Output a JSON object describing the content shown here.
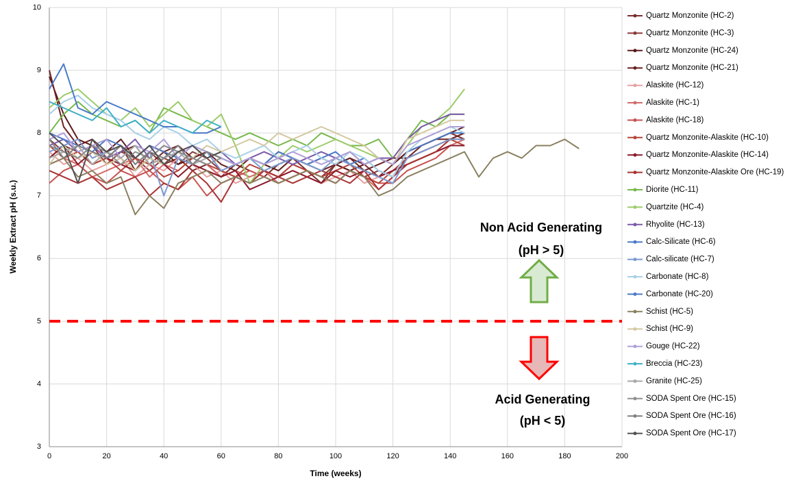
{
  "chart_data": {
    "type": "line",
    "xlabel": "Time (weeks)",
    "ylabel": "Weekly Extract pH (s.u.)",
    "xlim": [
      0,
      200
    ],
    "ylim": [
      3,
      10
    ],
    "xticks": [
      0,
      20,
      40,
      60,
      80,
      100,
      120,
      140,
      160,
      180,
      200
    ],
    "yticks": [
      3,
      4,
      5,
      6,
      7,
      8,
      9,
      10
    ],
    "grid": true,
    "legend": "right",
    "reference_line": {
      "value": 5,
      "color": "#ff0000"
    },
    "annotations": [
      {
        "text": "Non Acid Generating",
        "color": "#70ad47"
      },
      {
        "text": "(pH > 5)",
        "color": "#70ad47"
      },
      {
        "text": "Acid Generating",
        "color": "#ff0000"
      },
      {
        "text": "(pH < 5)",
        "color": "#ff0000"
      }
    ],
    "x": [
      0,
      5,
      10,
      15,
      20,
      25,
      30,
      35,
      40,
      45,
      50,
      55,
      60,
      65,
      70,
      75,
      80,
      85,
      90,
      95,
      100,
      105,
      110,
      115,
      120,
      125,
      130,
      135,
      140,
      145,
      150,
      155,
      160,
      165,
      170,
      175,
      180,
      185
    ],
    "series": [
      {
        "name": "Quartz Monzonite (HC-2)",
        "color": "#7b2c2c",
        "values": [
          7.6,
          7.8,
          7.7,
          7.5,
          7.6,
          7.8,
          7.4,
          7.7,
          7.5,
          7.6,
          7.4,
          7.5,
          7.3,
          7.5,
          7.4,
          7.3,
          7.5,
          7.6,
          7.4,
          7.2,
          7.5,
          7.6,
          7.5,
          7.3,
          7.5,
          7.7,
          7.8,
          7.9,
          8.0,
          7.9,
          null,
          null,
          null,
          null,
          null,
          null,
          null,
          null
        ]
      },
      {
        "name": "Quartz Monzonite (HC-3)",
        "color": "#8b3a3a",
        "values": [
          7.9,
          7.7,
          7.6,
          7.8,
          7.5,
          7.7,
          7.6,
          7.4,
          7.6,
          7.5,
          7.7,
          7.6,
          7.4,
          7.3,
          7.2,
          7.4,
          7.3,
          7.5,
          7.4,
          7.3,
          7.5,
          7.4,
          7.3,
          7.4,
          7.3,
          7.6,
          7.7,
          7.8,
          7.9,
          8.0,
          null,
          null,
          null,
          null,
          null,
          null,
          null,
          null
        ]
      },
      {
        "name": "Quartz Monzonite (HC-24)",
        "color": "#5c1a1a",
        "values": [
          8.9,
          8.3,
          7.9,
          7.8,
          7.7,
          7.9,
          7.6,
          7.8,
          7.7,
          7.5,
          7.6,
          7.7,
          7.6,
          7.5,
          7.6,
          7.5,
          7.4,
          7.6,
          7.5,
          7.6,
          7.5,
          7.4,
          7.5,
          7.6,
          7.5,
          7.7,
          7.8,
          7.9,
          8.0,
          8.1,
          null,
          null,
          null,
          null,
          null,
          null,
          null,
          null
        ]
      },
      {
        "name": "Quartz Monzonite (HC-21)",
        "color": "#6b2222",
        "values": [
          9.0,
          8.1,
          7.8,
          7.9,
          7.6,
          7.7,
          7.8,
          7.5,
          7.7,
          7.8,
          7.6,
          7.7,
          7.5,
          7.4,
          7.6,
          7.5,
          7.7,
          7.6,
          7.5,
          7.4,
          7.5,
          7.6,
          7.4,
          7.5,
          7.6,
          7.6,
          7.8,
          7.9,
          7.9,
          8.0,
          null,
          null,
          null,
          null,
          null,
          null,
          null,
          null
        ]
      },
      {
        "name": "Alaskite (HC-12)",
        "color": "#e8a0a0",
        "values": [
          7.7,
          7.5,
          7.6,
          7.4,
          7.5,
          7.6,
          7.3,
          7.5,
          7.4,
          7.6,
          7.5,
          7.3,
          7.4,
          7.2,
          7.3,
          7.4,
          7.3,
          7.4,
          7.3,
          7.2,
          7.3,
          7.4,
          7.2,
          7.3,
          7.4,
          7.5,
          7.6,
          7.7,
          7.8,
          7.8,
          null,
          null,
          null,
          null,
          null,
          null,
          null,
          null
        ]
      },
      {
        "name": "Alaskite (HC-1)",
        "color": "#d46a6a",
        "values": [
          7.5,
          7.6,
          7.5,
          7.3,
          7.4,
          7.5,
          7.6,
          7.3,
          7.5,
          7.4,
          7.6,
          7.5,
          7.3,
          7.4,
          7.3,
          7.4,
          7.2,
          7.3,
          7.4,
          7.3,
          7.2,
          7.4,
          7.3,
          7.1,
          7.3,
          7.5,
          7.6,
          7.7,
          7.8,
          7.9,
          null,
          null,
          null,
          null,
          null,
          null,
          null,
          null
        ]
      },
      {
        "name": "Alaskite (HC-18)",
        "color": "#c85050",
        "values": [
          7.2,
          7.4,
          7.5,
          7.3,
          7.2,
          7.4,
          7.3,
          7.4,
          7.2,
          7.1,
          7.3,
          7.0,
          7.2,
          7.3,
          7.4,
          7.3,
          7.2,
          7.3,
          7.4,
          7.3,
          7.2,
          7.4,
          7.3,
          7.2,
          7.2,
          7.4,
          7.5,
          7.6,
          7.8,
          7.8,
          null,
          null,
          null,
          null,
          null,
          null,
          null,
          null
        ]
      },
      {
        "name": "Quartz Monzonite-Alaskite (HC-10)",
        "color": "#b5453a",
        "values": [
          7.8,
          7.6,
          7.7,
          7.5,
          7.6,
          7.4,
          7.6,
          7.5,
          7.3,
          7.4,
          7.6,
          7.5,
          7.4,
          7.3,
          7.5,
          7.4,
          7.3,
          7.5,
          7.4,
          7.3,
          7.4,
          7.5,
          7.3,
          7.2,
          7.4,
          7.6,
          7.7,
          7.8,
          7.9,
          7.8,
          null,
          null,
          null,
          null,
          null,
          null,
          null,
          null
        ]
      },
      {
        "name": "Quartz Monzonite-Alaskite (HC-14)",
        "color": "#8b1a2a",
        "values": [
          7.6,
          7.8,
          7.5,
          7.7,
          7.6,
          7.5,
          7.4,
          7.6,
          7.5,
          7.3,
          7.5,
          7.4,
          7.3,
          7.4,
          7.1,
          7.2,
          7.3,
          7.4,
          7.3,
          7.2,
          7.4,
          7.3,
          7.4,
          7.3,
          7.4,
          7.5,
          7.6,
          7.7,
          7.8,
          7.8,
          null,
          null,
          null,
          null,
          null,
          null,
          null,
          null
        ]
      },
      {
        "name": "Quartz Monzonite-Alaskite Ore (HC-19)",
        "color": "#a83232",
        "values": [
          7.4,
          7.3,
          7.2,
          7.3,
          7.1,
          7.2,
          7.3,
          7.0,
          7.2,
          7.1,
          7.4,
          7.2,
          6.9,
          7.3,
          7.2,
          7.4,
          7.3,
          7.2,
          7.3,
          7.4,
          7.3,
          7.2,
          7.4,
          7.1,
          7.3,
          7.5,
          7.6,
          7.7,
          7.9,
          7.9,
          null,
          null,
          null,
          null,
          null,
          null,
          null,
          null
        ]
      },
      {
        "name": "Diorite (HC-11)",
        "color": "#77b84a",
        "values": [
          8.0,
          8.3,
          8.5,
          8.3,
          8.2,
          8.1,
          8.2,
          8.0,
          8.4,
          8.3,
          8.2,
          8.1,
          8.0,
          7.9,
          8.0,
          7.9,
          7.8,
          7.9,
          7.8,
          8.0,
          7.9,
          7.8,
          7.8,
          7.9,
          7.6,
          7.9,
          8.2,
          8.1,
          8.3,
          8.3,
          null,
          null,
          null,
          null,
          null,
          null,
          null,
          null
        ]
      },
      {
        "name": "Quartzite (HC-4)",
        "color": "#9ccc6a",
        "values": [
          8.4,
          8.6,
          8.7,
          8.5,
          8.3,
          8.2,
          8.4,
          8.1,
          8.3,
          8.5,
          8.2,
          8.1,
          8.3,
          7.8,
          7.2,
          7.5,
          7.6,
          7.8,
          7.7,
          7.8,
          7.9,
          7.8,
          7.7,
          7.6,
          7.5,
          7.8,
          8.1,
          8.2,
          8.4,
          8.7,
          null,
          null,
          null,
          null,
          null,
          null,
          null,
          null
        ]
      },
      {
        "name": "Rhyolite (HC-13)",
        "color": "#7a5aa8",
        "values": [
          7.8,
          7.9,
          7.7,
          7.8,
          7.6,
          7.7,
          7.9,
          7.6,
          7.8,
          7.7,
          7.8,
          7.6,
          7.7,
          7.5,
          7.6,
          7.7,
          7.6,
          7.5,
          7.6,
          7.7,
          7.6,
          7.7,
          7.5,
          7.6,
          7.6,
          7.9,
          8.1,
          8.2,
          8.3,
          8.3,
          null,
          null,
          null,
          null,
          null,
          null,
          null,
          null
        ]
      },
      {
        "name": "Calc-Silicate (HC-6)",
        "color": "#4a7ac8",
        "values": [
          8.0,
          7.9,
          7.8,
          7.7,
          7.9,
          7.8,
          7.6,
          7.8,
          7.7,
          7.6,
          7.8,
          7.7,
          7.6,
          7.5,
          7.6,
          7.5,
          7.7,
          7.6,
          7.5,
          7.6,
          7.7,
          7.5,
          7.6,
          7.4,
          7.3,
          7.7,
          7.8,
          7.9,
          8.0,
          8.0,
          null,
          null,
          null,
          null,
          null,
          null,
          null,
          null
        ]
      },
      {
        "name": "Calc-silicate (HC-7)",
        "color": "#7a9ad0",
        "values": [
          7.7,
          7.8,
          7.9,
          7.6,
          7.7,
          7.8,
          7.5,
          7.7,
          7.0,
          7.6,
          7.5,
          7.7,
          7.4,
          7.5,
          7.6,
          7.4,
          7.5,
          7.6,
          7.5,
          7.4,
          7.6,
          7.5,
          7.4,
          7.3,
          7.2,
          7.6,
          7.7,
          7.8,
          7.9,
          7.9,
          null,
          null,
          null,
          null,
          null,
          null,
          null,
          null
        ]
      },
      {
        "name": "Carbonate (HC-8)",
        "color": "#a8d0e8",
        "values": [
          8.3,
          8.5,
          8.6,
          8.4,
          8.3,
          8.2,
          8.0,
          7.9,
          8.1,
          8.0,
          7.8,
          7.9,
          7.7,
          7.6,
          7.7,
          7.8,
          7.6,
          7.7,
          7.8,
          7.6,
          7.5,
          7.7,
          7.6,
          7.4,
          7.3,
          7.7,
          7.9,
          8.0,
          8.1,
          8.0,
          null,
          null,
          null,
          null,
          null,
          null,
          null,
          null
        ]
      },
      {
        "name": "Carbonate (HC-20)",
        "color": "#4a7ac8",
        "values": [
          8.7,
          9.1,
          8.4,
          8.3,
          8.5,
          8.4,
          8.3,
          8.2,
          8.1,
          8.1,
          8.0,
          8.0,
          8.1,
          null,
          null,
          null,
          null,
          null,
          null,
          null,
          null,
          null,
          null,
          null,
          null,
          null,
          null,
          null,
          null,
          null,
          null,
          null,
          null,
          null,
          null,
          null,
          null,
          null
        ]
      },
      {
        "name": "Schist (HC-5)",
        "color": "#8a8060",
        "values": [
          7.5,
          7.6,
          7.3,
          7.4,
          7.2,
          7.3,
          6.7,
          7.0,
          6.8,
          7.2,
          7.3,
          7.4,
          7.2,
          7.3,
          7.2,
          7.3,
          7.2,
          7.3,
          7.4,
          7.3,
          7.2,
          7.4,
          7.3,
          7.0,
          7.1,
          7.3,
          7.4,
          7.5,
          7.6,
          7.7,
          7.3,
          7.6,
          7.7,
          7.6,
          7.8,
          7.8,
          7.9,
          7.75
        ]
      },
      {
        "name": "Schist (HC-9)",
        "color": "#d4c8a0",
        "values": [
          7.5,
          7.8,
          7.6,
          7.7,
          7.5,
          7.6,
          7.4,
          7.6,
          7.5,
          7.7,
          7.6,
          7.8,
          7.7,
          7.8,
          7.9,
          7.8,
          8.0,
          7.9,
          8.0,
          8.1,
          8.0,
          7.9,
          7.8,
          7.6,
          7.5,
          7.9,
          8.0,
          8.1,
          8.2,
          8.2,
          null,
          null,
          null,
          null,
          null,
          null,
          null,
          null
        ]
      },
      {
        "name": "Gouge (HC-22)",
        "color": "#b0a0d8",
        "values": [
          7.9,
          8.0,
          7.7,
          7.8,
          7.9,
          7.6,
          7.8,
          7.7,
          7.9,
          7.6,
          7.8,
          7.7,
          7.6,
          7.5,
          7.6,
          7.5,
          7.6,
          7.7,
          7.6,
          7.5,
          7.6,
          7.7,
          7.5,
          7.6,
          7.5,
          7.8,
          7.9,
          8.0,
          8.1,
          8.1,
          null,
          null,
          null,
          null,
          null,
          null,
          null,
          null
        ]
      },
      {
        "name": "Breccia (HC-23)",
        "color": "#40b0c8",
        "values": [
          8.5,
          8.4,
          8.3,
          8.2,
          8.4,
          8.1,
          8.2,
          8.0,
          8.2,
          8.1,
          8.0,
          8.2,
          8.1,
          null,
          null,
          null,
          null,
          null,
          null,
          null,
          null,
          null,
          null,
          null,
          null,
          null,
          null,
          null,
          null,
          null,
          null,
          null,
          null,
          null,
          null,
          null,
          null,
          null
        ]
      },
      {
        "name": "Granite (HC-25)",
        "color": "#a8a8a8",
        "values": [
          7.6,
          7.7,
          7.8,
          7.5,
          7.7,
          7.6,
          7.8,
          7.5,
          7.6,
          7.7,
          7.5,
          7.6,
          7.7,
          null,
          null,
          null,
          null,
          null,
          null,
          null,
          null,
          null,
          null,
          null,
          null,
          null,
          null,
          null,
          null,
          null,
          null,
          null,
          null,
          null,
          null,
          null,
          null,
          null
        ]
      },
      {
        "name": "SODA Spent Ore (HC-15)",
        "color": "#909090",
        "values": [
          7.8,
          7.7,
          7.6,
          7.8,
          7.7,
          7.5,
          7.7,
          7.6,
          7.8,
          7.7,
          7.6,
          7.5,
          7.6,
          null,
          null,
          null,
          null,
          null,
          null,
          null,
          null,
          null,
          null,
          null,
          null,
          null,
          null,
          null,
          null,
          null,
          null,
          null,
          null,
          null,
          null,
          null,
          null,
          null
        ]
      },
      {
        "name": "SODA Spent Ore (HC-16)",
        "color": "#808080",
        "values": [
          7.9,
          7.6,
          7.8,
          7.7,
          7.6,
          7.8,
          7.5,
          7.7,
          7.6,
          7.8,
          7.5,
          7.7,
          7.6,
          null,
          null,
          null,
          null,
          null,
          null,
          null,
          null,
          null,
          null,
          null,
          null,
          null,
          null,
          null,
          null,
          null,
          null,
          null,
          null,
          null,
          null,
          null,
          null,
          null
        ]
      },
      {
        "name": "SODA Spent Ore (HC-17)",
        "color": "#505050",
        "values": [
          8.0,
          7.8,
          7.2,
          7.9,
          7.7,
          7.8,
          7.6,
          7.8,
          7.5,
          7.7,
          7.8,
          7.6,
          7.7,
          null,
          null,
          null,
          null,
          null,
          null,
          null,
          null,
          null,
          null,
          null,
          null,
          null,
          null,
          null,
          null,
          null,
          null,
          null,
          null,
          null,
          null,
          null,
          null,
          null
        ]
      }
    ]
  }
}
